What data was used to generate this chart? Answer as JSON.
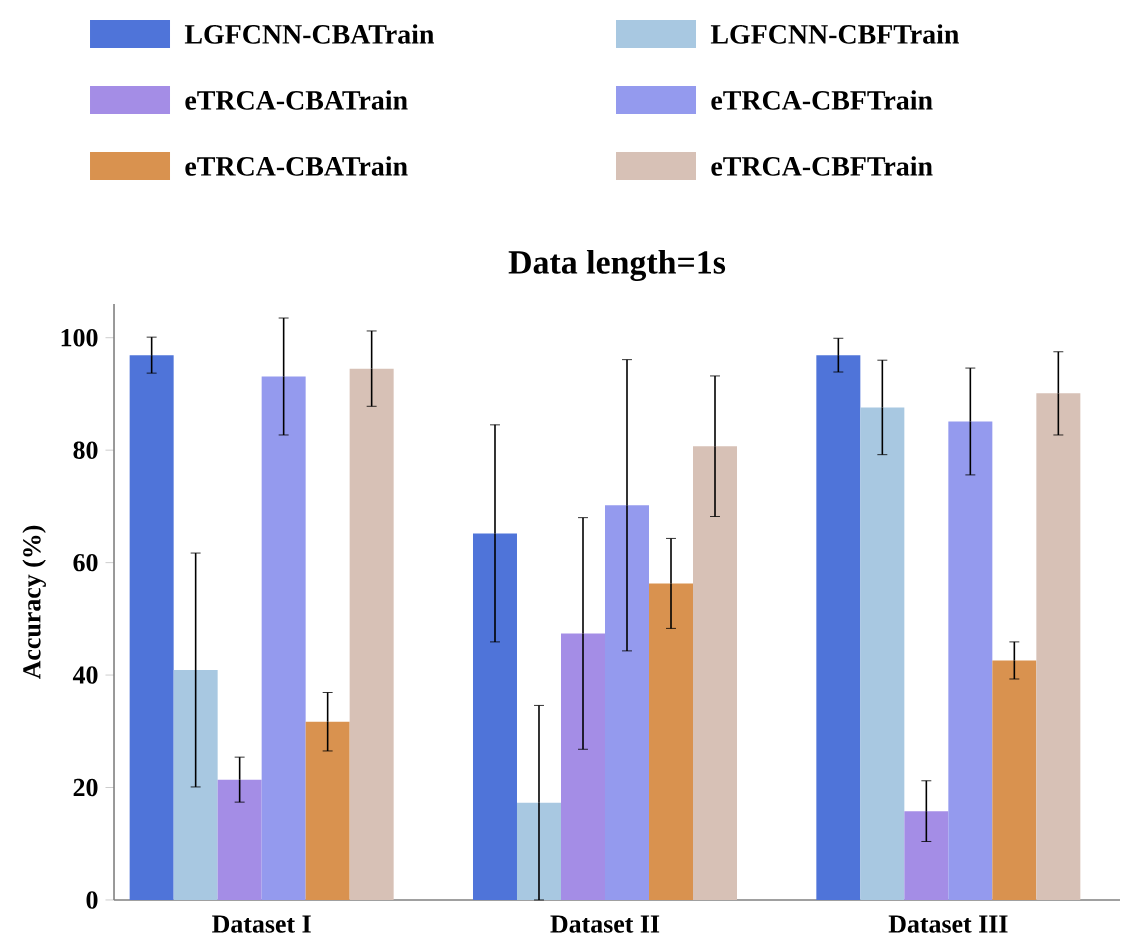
{
  "chart_data": {
    "type": "bar",
    "title": "Data length=1s",
    "ylabel": "Accuracy (%)",
    "categories": [
      "Dataset I",
      "Dataset II",
      "Dataset III"
    ],
    "series": [
      {
        "name": "LGFCNN-CBATrain",
        "color": "#4f74d9",
        "values": [
          96.9,
          65.2,
          96.9
        ],
        "errors": [
          3.2,
          19.3,
          3
        ]
      },
      {
        "name": "LGFCNN-CBFTrain",
        "color": "#a8c8e1",
        "values": [
          40.9,
          17.3,
          87.6
        ],
        "errors": [
          20.8,
          17.3,
          8.4
        ]
      },
      {
        "name": "eTRCA-CBATrain",
        "color": "#a48de6",
        "values": [
          21.4,
          47.4,
          15.8
        ],
        "errors": [
          4,
          20.6,
          5.4
        ]
      },
      {
        "name": "eTRCA-CBFTrain",
        "color": "#949aee",
        "values": [
          93.1,
          70.2,
          85.1
        ],
        "errors": [
          10.4,
          25.9,
          9.5
        ]
      },
      {
        "name": "eTRCA-CBATrain",
        "color": "#d9924f",
        "values": [
          31.7,
          56.3,
          42.6
        ],
        "errors": [
          5.2,
          8,
          3.3
        ]
      },
      {
        "name": "eTRCA-CBFTrain",
        "color": "#d7c1b6",
        "values": [
          94.5,
          80.7,
          90.1
        ],
        "errors": [
          6.7,
          12.5,
          7.4
        ]
      }
    ],
    "ylim": [
      0,
      106
    ],
    "yticks": [
      0,
      20,
      40,
      60,
      80,
      100
    ],
    "grid": false,
    "legend": "top"
  }
}
